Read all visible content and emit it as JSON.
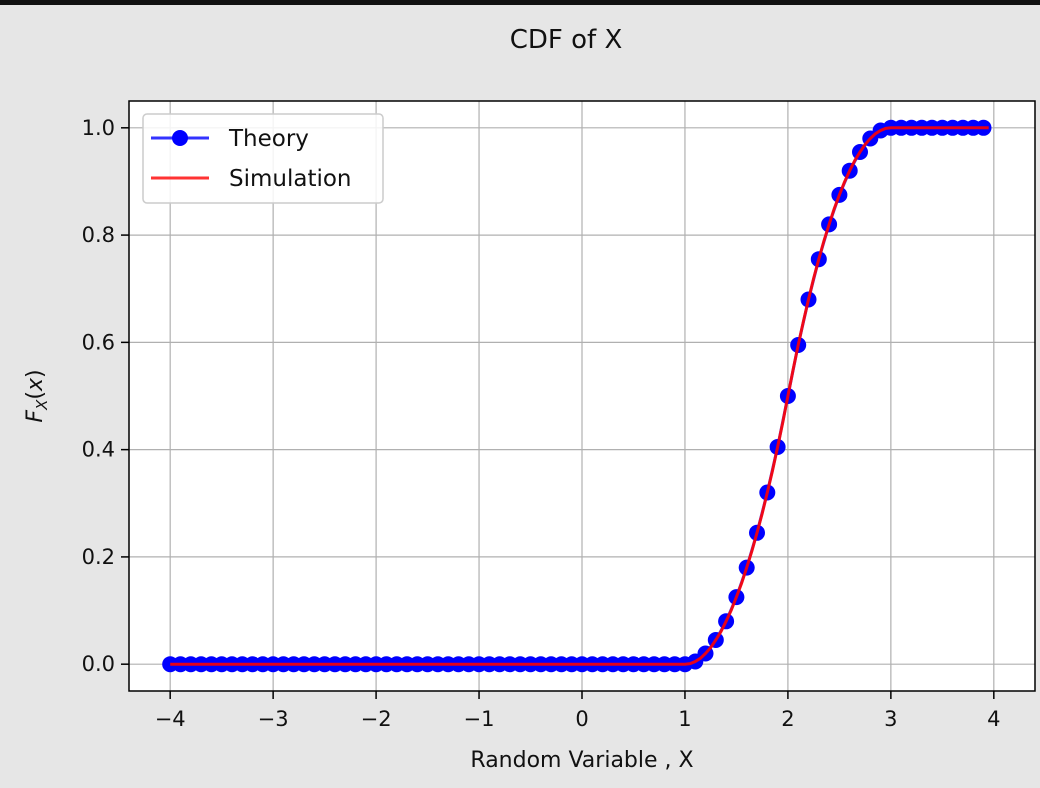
{
  "chart_data": {
    "type": "line",
    "title": "CDF of X",
    "xlabel": "Random Variable , X",
    "ylabel": "F_X(x)",
    "xlim": [
      -4.4,
      4.4
    ],
    "ylim": [
      -0.05,
      1.05
    ],
    "xticks": [
      -4,
      -3,
      -2,
      -1,
      0,
      1,
      2,
      3,
      4
    ],
    "xtick_labels": [
      "−4",
      "−3",
      "−2",
      "−1",
      "0",
      "1",
      "2",
      "3",
      "4"
    ],
    "yticks": [
      0.0,
      0.2,
      0.4,
      0.6,
      0.8,
      1.0
    ],
    "ytick_labels": [
      "0.0",
      "0.2",
      "0.4",
      "0.6",
      "0.8",
      "1.0"
    ],
    "grid": true,
    "legend_position": "upper-left",
    "series": [
      {
        "name": "Theory",
        "style": "line-with-circle-markers",
        "color": "#0000ff",
        "x": [
          -4.0,
          -3.9,
          -3.8,
          -3.7,
          -3.6,
          -3.5,
          -3.4,
          -3.3,
          -3.2,
          -3.1,
          -3.0,
          -2.9,
          -2.8,
          -2.7,
          -2.6,
          -2.5,
          -2.4,
          -2.3,
          -2.2,
          -2.1,
          -2.0,
          -1.9,
          -1.8,
          -1.7,
          -1.6,
          -1.5,
          -1.4,
          -1.3,
          -1.2,
          -1.1,
          -1.0,
          -0.9,
          -0.8,
          -0.7,
          -0.6,
          -0.5,
          -0.4,
          -0.3,
          -0.2,
          -0.1,
          0.0,
          0.1,
          0.2,
          0.3,
          0.4,
          0.5,
          0.6,
          0.7,
          0.8,
          0.9,
          1.0,
          1.1,
          1.2,
          1.3,
          1.4,
          1.5,
          1.6,
          1.7,
          1.8,
          1.9,
          2.0,
          2.1,
          2.2,
          2.3,
          2.4,
          2.5,
          2.6,
          2.7,
          2.8,
          2.9,
          3.0,
          3.1,
          3.2,
          3.3,
          3.4,
          3.5,
          3.6,
          3.7,
          3.8,
          3.9
        ],
        "y": [
          0,
          0,
          0,
          0,
          0,
          0,
          0,
          0,
          0,
          0,
          0,
          0,
          0,
          0,
          0,
          0,
          0,
          0,
          0,
          0,
          0,
          0,
          0,
          0,
          0,
          0,
          0,
          0,
          0,
          0,
          0,
          0,
          0,
          0,
          0,
          0,
          0,
          0,
          0,
          0,
          0,
          0,
          0,
          0,
          0,
          0,
          0,
          0,
          0,
          0,
          0,
          0.005,
          0.02,
          0.045,
          0.08,
          0.125,
          0.18,
          0.245,
          0.32,
          0.405,
          0.5,
          0.595,
          0.68,
          0.755,
          0.82,
          0.875,
          0.92,
          0.955,
          0.98,
          0.995,
          1,
          1,
          1,
          1,
          1,
          1,
          1,
          1,
          1,
          1
        ]
      },
      {
        "name": "Simulation",
        "style": "line",
        "color": "#ff0000",
        "x": [
          -4.0,
          -3.0,
          -2.0,
          -1.0,
          0.0,
          1.0,
          1.05,
          1.1,
          1.15,
          1.2,
          1.25,
          1.3,
          1.35,
          1.4,
          1.45,
          1.5,
          1.55,
          1.6,
          1.65,
          1.7,
          1.75,
          1.8,
          1.85,
          1.9,
          1.95,
          2.0,
          2.05,
          2.1,
          2.15,
          2.2,
          2.25,
          2.3,
          2.35,
          2.4,
          2.45,
          2.5,
          2.55,
          2.6,
          2.65,
          2.7,
          2.75,
          2.8,
          2.85,
          2.9,
          2.95,
          3.0,
          3.5,
          3.95
        ],
        "y": [
          0,
          0,
          0,
          0,
          0,
          0,
          0.001,
          0.005,
          0.011,
          0.02,
          0.031,
          0.045,
          0.061,
          0.08,
          0.101,
          0.125,
          0.151,
          0.18,
          0.211,
          0.245,
          0.281,
          0.32,
          0.361,
          0.405,
          0.451,
          0.5,
          0.549,
          0.595,
          0.639,
          0.68,
          0.719,
          0.755,
          0.789,
          0.82,
          0.849,
          0.875,
          0.899,
          0.92,
          0.939,
          0.955,
          0.969,
          0.98,
          0.989,
          0.995,
          0.999,
          1,
          1,
          1
        ]
      }
    ]
  }
}
